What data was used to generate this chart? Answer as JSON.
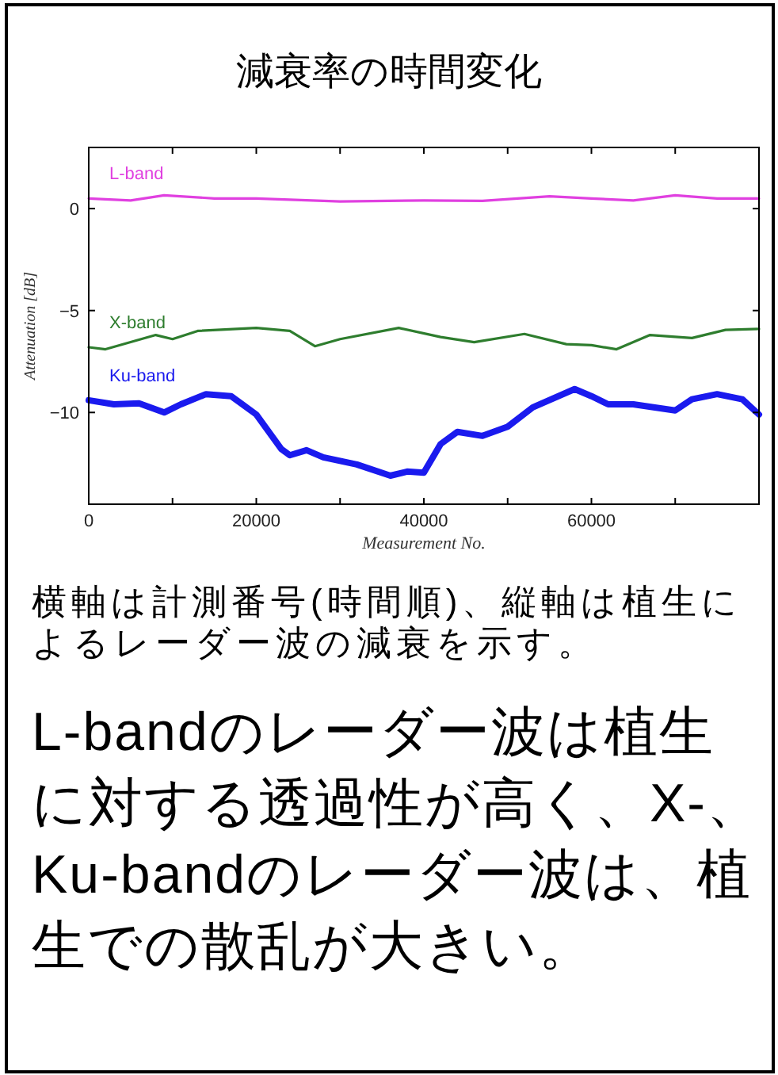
{
  "chart_data": {
    "type": "line",
    "title": "減衰率の時間変化",
    "xlabel": "Measurement No.",
    "ylabel": "Attenuation [dB]",
    "xlim": [
      0,
      80000
    ],
    "ylim": [
      -14.5,
      3
    ],
    "xticks": [
      0,
      {
        "value": 10000,
        "label": null
      },
      20000,
      {
        "value": 30000,
        "label": null
      },
      40000,
      {
        "value": 50000,
        "label": null
      },
      60000,
      {
        "value": 70000,
        "label": null
      }
    ],
    "yticks": [
      {
        "value": -10,
        "label": "−10"
      },
      {
        "value": -5,
        "label": "−5"
      },
      0
    ],
    "line_style": "solid",
    "series": [
      {
        "name": "L-band",
        "color": "#e040e0",
        "x": [
          0,
          5000,
          9000,
          15000,
          20000,
          30000,
          40000,
          47000,
          55000,
          60000,
          65000,
          70000,
          75000,
          80000
        ],
        "values": [
          0.5,
          0.4,
          0.65,
          0.5,
          0.5,
          0.35,
          0.4,
          0.38,
          0.6,
          0.5,
          0.4,
          0.65,
          0.5,
          0.5
        ]
      },
      {
        "name": "X-band",
        "color": "#2e7d2e",
        "x": [
          0,
          2000,
          8000,
          10000,
          13000,
          20000,
          24000,
          27000,
          30000,
          37000,
          42000,
          46000,
          52000,
          57000,
          60000,
          63000,
          67000,
          72000,
          76000,
          80000
        ],
        "values": [
          -6.8,
          -6.9,
          -6.2,
          -6.4,
          -6.0,
          -5.85,
          -6.0,
          -6.75,
          -6.4,
          -5.85,
          -6.3,
          -6.55,
          -6.15,
          -6.65,
          -6.7,
          -6.9,
          -6.2,
          -6.35,
          -5.95,
          -5.9
        ]
      },
      {
        "name": "Ku-band",
        "color": "#1a1aee",
        "x": [
          0,
          3000,
          6000,
          9000,
          11000,
          14000,
          17000,
          20000,
          23000,
          24000,
          26000,
          28000,
          32000,
          36000,
          38000,
          40000,
          42000,
          44000,
          47000,
          50000,
          53000,
          58000,
          60000,
          62000,
          65000,
          70000,
          72000,
          75000,
          78000,
          80000
        ],
        "values": [
          -9.4,
          -9.6,
          -9.55,
          -10.0,
          -9.6,
          -9.1,
          -9.2,
          -10.1,
          -11.8,
          -12.1,
          -11.85,
          -12.2,
          -12.55,
          -13.1,
          -12.9,
          -12.95,
          -11.55,
          -10.95,
          -11.15,
          -10.7,
          -9.75,
          -8.85,
          -9.2,
          -9.6,
          -9.6,
          -9.9,
          -9.35,
          -9.1,
          -9.35,
          -10.1
        ]
      }
    ],
    "annotations": [
      "横軸は計測番号(時間順)、縦軸は植生によるレーダー波の減衰を示す。",
      "L-bandのレーダー波は植生に対する透過性が高く、X-、Ku-bandのレーダー波は、植生での散乱が大きい。"
    ]
  }
}
